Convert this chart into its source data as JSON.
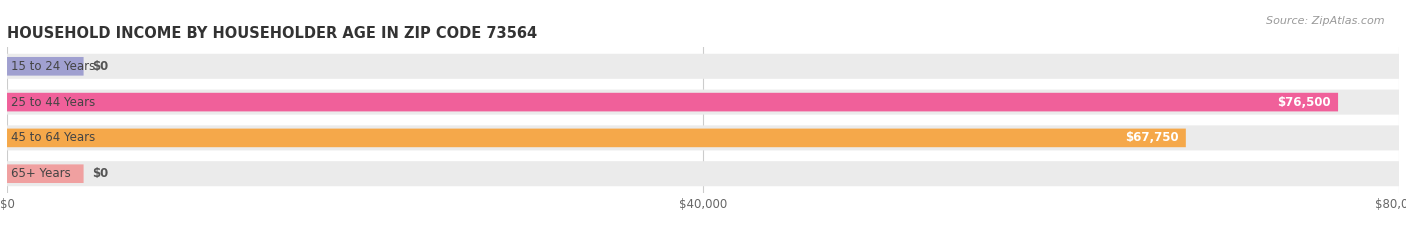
{
  "title": "HOUSEHOLD INCOME BY HOUSEHOLDER AGE IN ZIP CODE 73564",
  "source": "Source: ZipAtlas.com",
  "categories": [
    "15 to 24 Years",
    "25 to 44 Years",
    "45 to 64 Years",
    "65+ Years"
  ],
  "values": [
    0,
    76500,
    67750,
    0
  ],
  "bar_colors": [
    "#a0a0d0",
    "#f0609a",
    "#f5a84a",
    "#f0a0a0"
  ],
  "bar_bg_color": "#ebebeb",
  "value_labels": [
    "$0",
    "$76,500",
    "$67,750",
    "$0"
  ],
  "xlim": [
    0,
    80000
  ],
  "xticks": [
    0,
    40000,
    80000
  ],
  "xtick_labels": [
    "$0",
    "$40,000",
    "$80,000"
  ],
  "fig_bg_color": "#ffffff",
  "title_fontsize": 10.5,
  "label_fontsize": 8.5,
  "tick_fontsize": 8.5
}
